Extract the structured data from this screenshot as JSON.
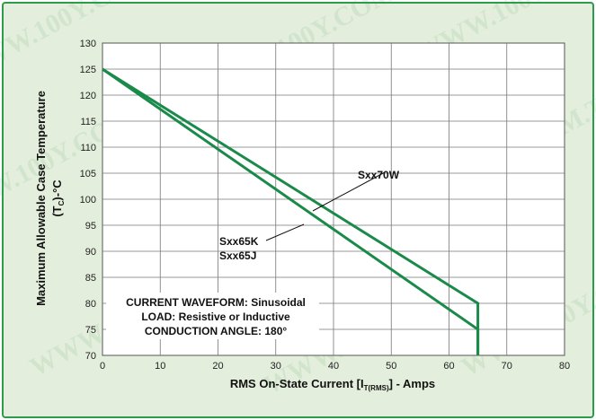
{
  "chart_data": {
    "type": "line",
    "xlabel_main": "RMS On-State Current [I",
    "xlabel_sub": "T(RMS)",
    "xlabel_tail": "] - Amps",
    "ylabel_main": "Maximum Allowable Case Temperature",
    "ylabel_sub_pre": "(T",
    "ylabel_sub": "C",
    "ylabel_sub_post": ")-°C",
    "xlim": [
      0,
      80
    ],
    "ylim": [
      70,
      130
    ],
    "x_ticks": [
      "0",
      "10",
      "20",
      "30",
      "40",
      "50",
      "60",
      "70",
      "80"
    ],
    "y_ticks": [
      "70",
      "75",
      "80",
      "85",
      "90",
      "95",
      "100",
      "105",
      "110",
      "115",
      "120",
      "125",
      "130"
    ],
    "grid": true,
    "series": [
      {
        "name": "Sxx70W",
        "points": [
          [
            0,
            125
          ],
          [
            65,
            80
          ],
          [
            65,
            70
          ]
        ]
      },
      {
        "name": "Sxx65K / Sxx65J",
        "points": [
          [
            0,
            125
          ],
          [
            65,
            75
          ],
          [
            65,
            70
          ]
        ]
      }
    ],
    "labels": {
      "sxx70w": "Sxx70W",
      "sxx65k": "Sxx65K",
      "sxx65j": "Sxx65J"
    },
    "conditions": [
      "CURRENT WAVEFORM: Sinusoidal",
      "LOAD: Resistive or Inductive",
      "CONDUCTION ANGLE: 180°"
    ],
    "line_color": "#1a8a4a",
    "watermark": "WWW.100Y.COM.TW"
  }
}
